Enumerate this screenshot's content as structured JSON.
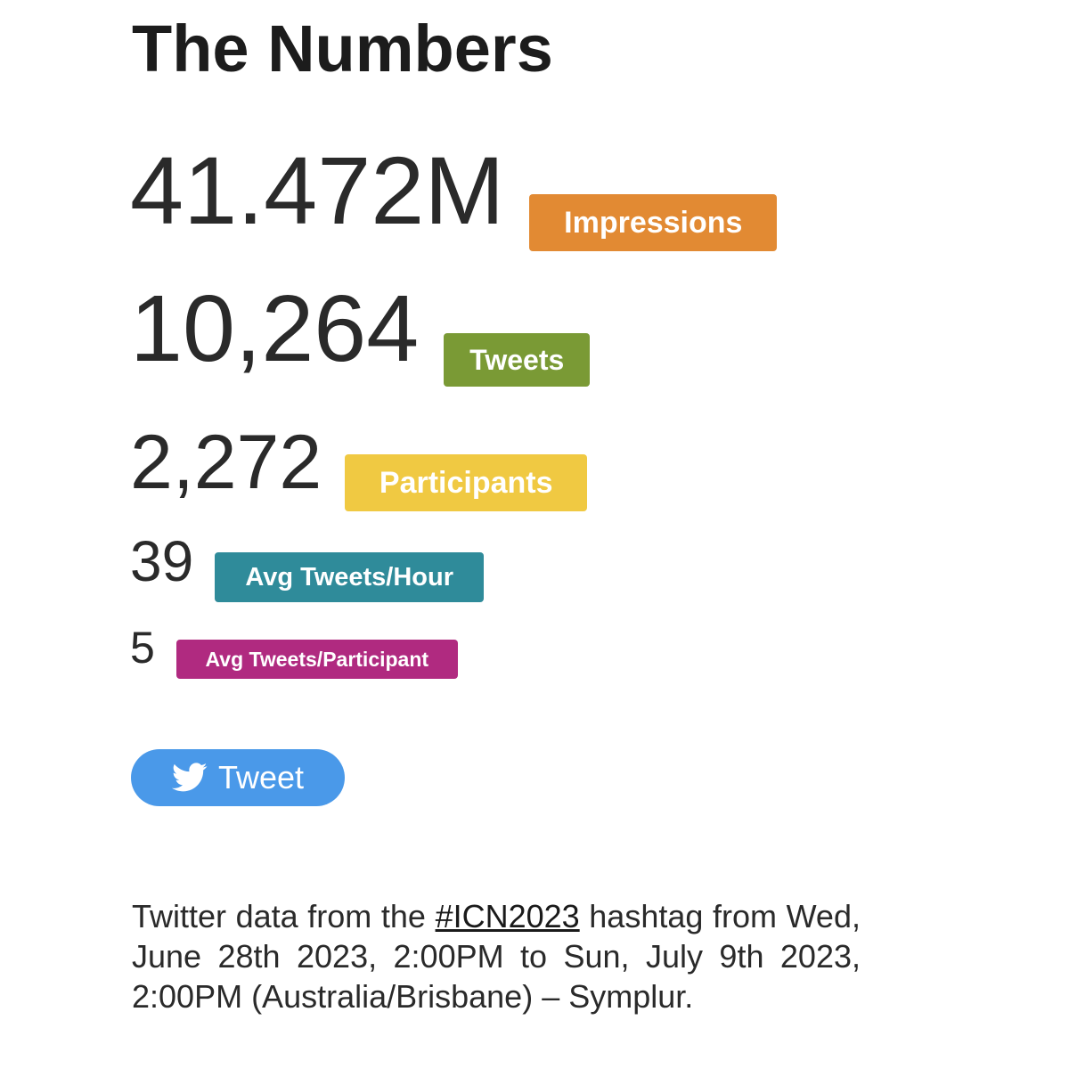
{
  "page": {
    "title": "The Numbers"
  },
  "stats": [
    {
      "value": "41.472M",
      "label": "Impressions",
      "color": "#e28a33"
    },
    {
      "value": "10,264",
      "label": "Tweets",
      "color": "#7a9a35"
    },
    {
      "value": "2,272",
      "label": "Participants",
      "color": "#f0c942"
    },
    {
      "value": "39",
      "label": "Avg Tweets/Hour",
      "color": "#2f8b9a"
    },
    {
      "value": "5",
      "label": "Avg Tweets/Participant",
      "color": "#b02a80"
    }
  ],
  "tweet_button": {
    "label": "Tweet",
    "icon": "twitter-bird-icon",
    "color": "#4a99e9"
  },
  "footer": {
    "prefix": "Twitter data from the ",
    "hashtag": "#ICN2023",
    "suffix": " hashtag from Wed, June 28th 2023, 2:00PM to Sun, July 9th 2023, 2:00PM (Australia/Brisbane) – Symplur."
  }
}
